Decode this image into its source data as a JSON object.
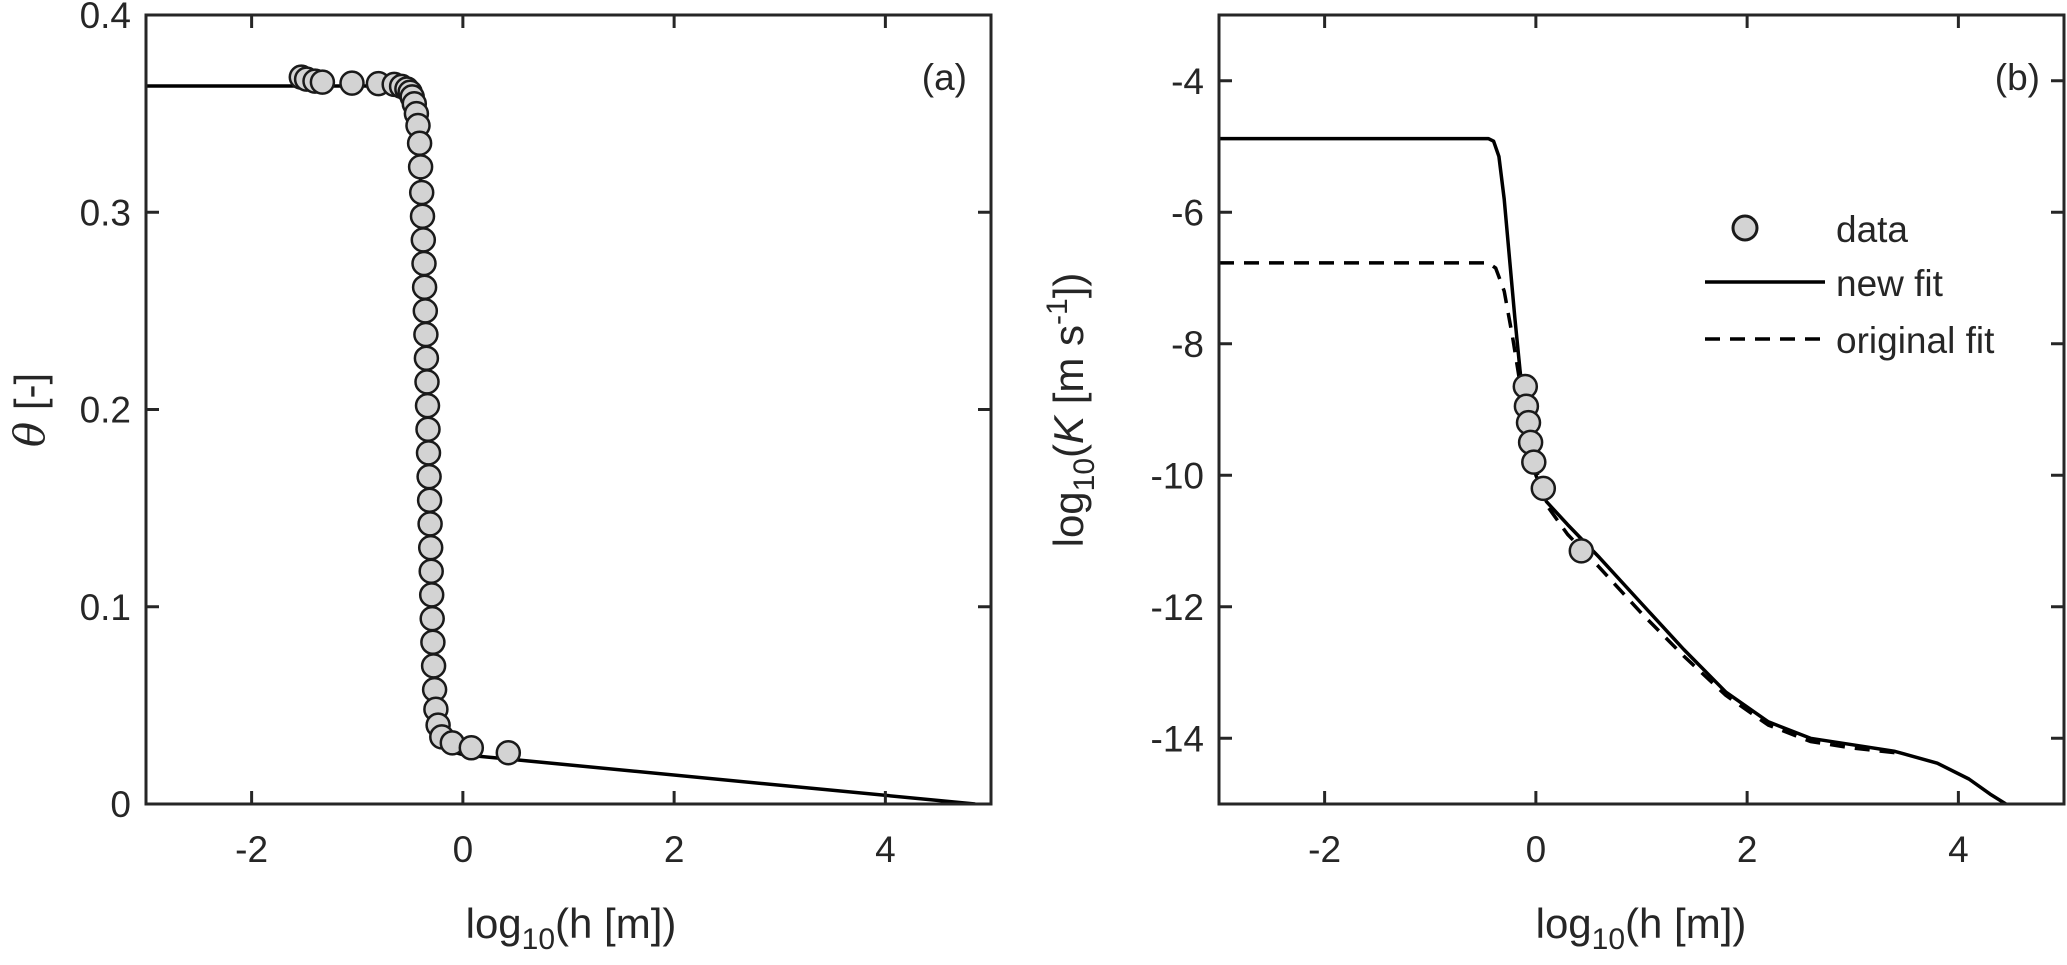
{
  "chart_data": [
    {
      "type": "scatter",
      "panel_label": "(a)",
      "xlabel": {
        "prefix": "log",
        "sub": "10",
        "suffix": "(h [m])"
      },
      "ylabel": {
        "symbol": "θ",
        "suffix": " [-]"
      },
      "xlim": [
        -3,
        5
      ],
      "ylim": [
        0,
        0.4
      ],
      "xticks": [
        -2,
        0,
        2,
        4
      ],
      "xtick_labels": [
        "-2",
        "0",
        "2",
        "4"
      ],
      "yticks": [
        0,
        0.1,
        0.2,
        0.3,
        0.4
      ],
      "ytick_labels": [
        "0",
        "0.1",
        "0.2",
        "0.3",
        "0.4"
      ],
      "grid": false,
      "series": [
        {
          "style": "markers",
          "marker_color": "#d3d3d3",
          "points": [
            [
              -1.53,
              0.3685
            ],
            [
              -1.48,
              0.3675
            ],
            [
              -1.4,
              0.3665
            ],
            [
              -1.33,
              0.366
            ],
            [
              -1.05,
              0.3655
            ],
            [
              -0.8,
              0.3652
            ],
            [
              -0.65,
              0.3648
            ],
            [
              -0.58,
              0.3638
            ],
            [
              -0.53,
              0.3625
            ],
            [
              -0.5,
              0.3608
            ],
            [
              -0.48,
              0.3585
            ],
            [
              -0.46,
              0.355
            ],
            [
              -0.44,
              0.35
            ],
            [
              -0.425,
              0.344
            ],
            [
              -0.41,
              0.335
            ],
            [
              -0.4,
              0.323
            ],
            [
              -0.39,
              0.31
            ],
            [
              -0.382,
              0.298
            ],
            [
              -0.375,
              0.286
            ],
            [
              -0.368,
              0.274
            ],
            [
              -0.362,
              0.262
            ],
            [
              -0.356,
              0.25
            ],
            [
              -0.35,
              0.238
            ],
            [
              -0.345,
              0.226
            ],
            [
              -0.34,
              0.214
            ],
            [
              -0.335,
              0.202
            ],
            [
              -0.33,
              0.19
            ],
            [
              -0.325,
              0.178
            ],
            [
              -0.32,
              0.166
            ],
            [
              -0.315,
              0.154
            ],
            [
              -0.31,
              0.142
            ],
            [
              -0.305,
              0.13
            ],
            [
              -0.3,
              0.118
            ],
            [
              -0.295,
              0.106
            ],
            [
              -0.29,
              0.094
            ],
            [
              -0.284,
              0.082
            ],
            [
              -0.277,
              0.07
            ],
            [
              -0.268,
              0.058
            ],
            [
              -0.255,
              0.048
            ],
            [
              -0.235,
              0.04
            ],
            [
              -0.2,
              0.034
            ],
            [
              -0.1,
              0.031
            ],
            [
              0.08,
              0.0285
            ],
            [
              0.43,
              0.026
            ]
          ]
        },
        {
          "style": "solid",
          "points": [
            [
              -3,
              0.364
            ],
            [
              -0.8,
              0.364
            ],
            [
              -0.6,
              0.3632
            ],
            [
              -0.52,
              0.3605
            ],
            [
              -0.47,
              0.354
            ],
            [
              -0.43,
              0.34
            ],
            [
              -0.4,
              0.316
            ],
            [
              -0.375,
              0.285
            ],
            [
              -0.355,
              0.25
            ],
            [
              -0.335,
              0.2
            ],
            [
              -0.32,
              0.15
            ],
            [
              -0.305,
              0.1
            ],
            [
              -0.29,
              0.07
            ],
            [
              -0.27,
              0.05
            ],
            [
              -0.24,
              0.037
            ],
            [
              -0.19,
              0.03
            ],
            [
              -0.1,
              0.0265
            ],
            [
              0.0,
              0.025
            ],
            [
              0.1,
              0.0245
            ],
            [
              4.85,
              0.0
            ]
          ]
        }
      ]
    },
    {
      "type": "line",
      "panel_label": "(b)",
      "xlabel": {
        "prefix": "log",
        "sub": "10",
        "suffix": "(h [m])"
      },
      "ylabel": {
        "prefix": "log",
        "sub": "10",
        "open": "(",
        "italic": "K",
        "mid": " [m s",
        "sup": "-1",
        "close": "])"
      },
      "xlim": [
        -3,
        5
      ],
      "ylim": [
        -15,
        -3
      ],
      "xticks": [
        -2,
        0,
        2,
        4
      ],
      "xtick_labels": [
        "-2",
        "0",
        "2",
        "4"
      ],
      "yticks": [
        -14,
        -12,
        -10,
        -8,
        -6,
        -4
      ],
      "ytick_labels": [
        "-14",
        "-12",
        "-10",
        "-8",
        "-6",
        "-4"
      ],
      "grid": false,
      "legend_position": "upper-right",
      "series": [
        {
          "name": "data",
          "style": "markers",
          "marker_color": "#d3d3d3",
          "points": [
            [
              -0.1,
              -8.65
            ],
            [
              -0.09,
              -8.95
            ],
            [
              -0.07,
              -9.2
            ],
            [
              -0.05,
              -9.5
            ],
            [
              -0.02,
              -9.8
            ],
            [
              0.07,
              -10.2
            ],
            [
              0.43,
              -11.15
            ]
          ]
        },
        {
          "name": "new fit",
          "style": "solid",
          "points": [
            [
              -3,
              -4.88
            ],
            [
              -0.45,
              -4.88
            ],
            [
              -0.4,
              -4.92
            ],
            [
              -0.35,
              -5.15
            ],
            [
              -0.3,
              -5.8
            ],
            [
              -0.25,
              -6.7
            ],
            [
              -0.2,
              -7.6
            ],
            [
              -0.15,
              -8.4
            ],
            [
              -0.1,
              -9.1
            ],
            [
              -0.05,
              -9.6
            ],
            [
              0.0,
              -10.0
            ],
            [
              0.1,
              -10.4
            ],
            [
              0.3,
              -10.75
            ],
            [
              0.6,
              -11.25
            ],
            [
              1.0,
              -11.95
            ],
            [
              1.4,
              -12.65
            ],
            [
              1.8,
              -13.3
            ],
            [
              2.2,
              -13.75
            ],
            [
              2.6,
              -14.0
            ],
            [
              3.0,
              -14.1
            ],
            [
              3.4,
              -14.2
            ],
            [
              3.8,
              -14.38
            ],
            [
              4.1,
              -14.62
            ],
            [
              4.3,
              -14.85
            ],
            [
              4.45,
              -15.0
            ]
          ]
        },
        {
          "name": "original fit",
          "style": "dashed",
          "points": [
            [
              -3,
              -6.77
            ],
            [
              -0.45,
              -6.77
            ],
            [
              -0.38,
              -6.85
            ],
            [
              -0.3,
              -7.2
            ],
            [
              -0.22,
              -7.9
            ],
            [
              -0.15,
              -8.6
            ],
            [
              -0.1,
              -9.1
            ],
            [
              0.0,
              -9.9
            ],
            [
              0.1,
              -10.45
            ],
            [
              0.3,
              -10.9
            ],
            [
              0.6,
              -11.4
            ],
            [
              1.0,
              -12.1
            ],
            [
              1.4,
              -12.75
            ],
            [
              1.8,
              -13.35
            ],
            [
              2.2,
              -13.8
            ],
            [
              2.6,
              -14.05
            ],
            [
              3.0,
              -14.15
            ],
            [
              3.4,
              -14.22
            ]
          ]
        }
      ]
    }
  ]
}
